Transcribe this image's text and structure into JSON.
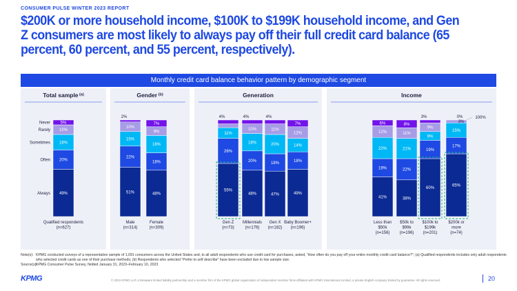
{
  "header": {
    "report_label": "CONSUMER PULSE WINTER 2023 REPORT",
    "headline": "$200K or more household income, $100K to $199K household income, and Gen Z consumers are most likely to always pay off their full credit card balance (65 percent, 60 percent, and 55 percent, respectively)."
  },
  "banner": {
    "title": "Monthly credit card balance behavior pattern by demographic segment"
  },
  "colors": {
    "always": "#0c2a94",
    "often": "#1e49e2",
    "sometimes": "#00b8f5",
    "rarely": "#a79ce6",
    "never": "#7213ea",
    "highlight_border": "#21b37a",
    "accent": "#1e49e2"
  },
  "chart_data": {
    "type": "bar",
    "stacked": true,
    "percent": true,
    "ylim": [
      0,
      100
    ],
    "categories_order": [
      "Always",
      "Often",
      "Sometimes",
      "Rarely",
      "Never"
    ],
    "category_labels": [
      "Never",
      "Rarely",
      "Sometimes",
      "Often",
      "Always"
    ],
    "groups": [
      {
        "title": "Total sample",
        "title_sup": "(a)",
        "bars": [
          {
            "label": "Qualified respondents (n=627)",
            "always": 49,
            "often": 20,
            "sometimes": 16,
            "rarely": 10,
            "never": 5,
            "highlight": false
          }
        ]
      },
      {
        "title": "Gender",
        "title_sup": "(b)",
        "bars": [
          {
            "label": "Male (n=314)",
            "always": 51,
            "often": 22,
            "sometimes": 15,
            "rarely": 10,
            "never": 2,
            "highlight": false
          },
          {
            "label": "Female (n=309)",
            "always": 48,
            "often": 18,
            "sometimes": 18,
            "rarely": 9,
            "never": 7,
            "highlight": false
          }
        ]
      },
      {
        "title": "Generation",
        "title_sup": "",
        "bars": [
          {
            "label": "Gen Z (n=73)",
            "always": 55,
            "often": 26,
            "sometimes": 11,
            "rarely": 4,
            "never": 4,
            "highlight": true
          },
          {
            "label": "Millennials (n=176)",
            "always": 48,
            "often": 20,
            "sometimes": 18,
            "rarely": 10,
            "never": 4,
            "highlight": false
          },
          {
            "label": "Gen X (n=182)",
            "always": 47,
            "often": 18,
            "sometimes": 20,
            "rarely": 11,
            "never": 4,
            "highlight": false
          },
          {
            "label": "Baby Boomer+ (n=196)",
            "always": 49,
            "often": 18,
            "sometimes": 14,
            "rarely": 12,
            "never": 7,
            "highlight": false
          }
        ]
      },
      {
        "title": "Income",
        "title_sup": "",
        "bars": [
          {
            "label": "Less than $50k (n=156)",
            "always": 41,
            "often": 19,
            "sometimes": 22,
            "rarely": 12,
            "never": 6,
            "highlight": false
          },
          {
            "label": "$50k to $99k (n=196)",
            "always": 38,
            "often": 22,
            "sometimes": 21,
            "rarely": 11,
            "never": 8,
            "highlight": false
          },
          {
            "label": "$100k to $199k (n=201)",
            "always": 60,
            "often": 19,
            "sometimes": 9,
            "rarely": 9,
            "never": 3,
            "highlight": true
          },
          {
            "label": "$200k or more (n=74)",
            "always": 65,
            "often": 17,
            "sometimes": 15,
            "rarely": 3,
            "never": 0,
            "highlight": true
          }
        ]
      }
    ],
    "total_annotation": "100%"
  },
  "notes": {
    "note_tag": "Note(s):",
    "note_text": "KPMG conducted surveys of a representative sample of 1,091 consumers across the United States and, to all adult respondents who use credit card for purchases, asked, “How often do you pay off your entire monthly credit card balance?”; (a) Qualified respondents includes only adult respondents who selected credit cards as one of their purchase methods; (b) Respondents who selected “Prefer to self describe” have been excluded due to low sample size.",
    "source_tag": "Source(s):",
    "source_text": "KPMG Consumer Pulse Survey, fielded January 31, 2023–February 10, 2023"
  },
  "footer": {
    "logo": "KPMG",
    "copyright": "© 2023 KPMG LLP, a Delaware limited liability partnership and a member firm of the KPMG global organization of independent member firms affiliated with KPMG International Limited, a private English company limited by guarantee. All rights reserved.",
    "page_number": "20"
  }
}
